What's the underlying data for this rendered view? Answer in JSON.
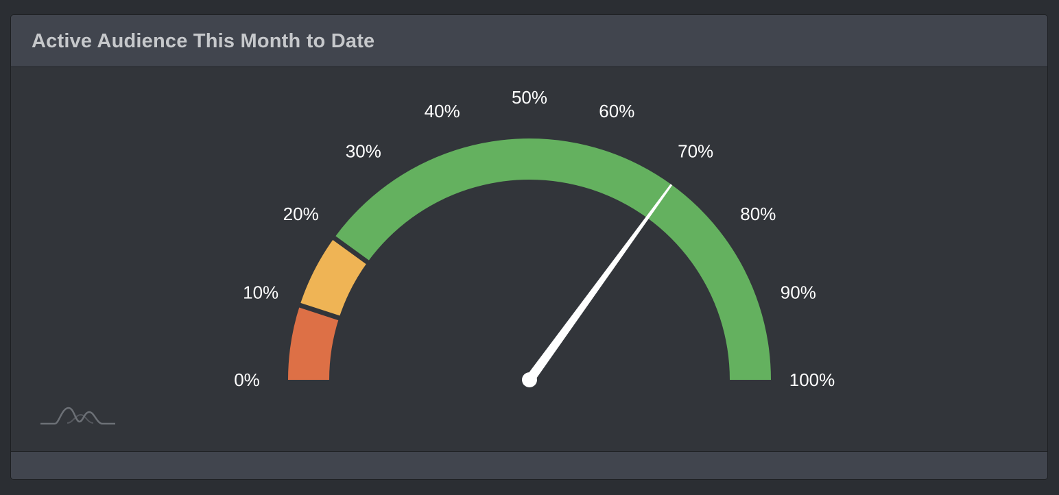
{
  "panel": {
    "title": "Active Audience This Month to Date"
  },
  "icons": {
    "brand": "wave-peaks-logo-icon"
  },
  "colors": {
    "background": "#2b2e33",
    "panel_body": "#32353a",
    "panel_header": "#41454e",
    "band_low": "#dd7046",
    "band_mid": "#efb455",
    "band_high": "#64b15f",
    "needle": "#ffffff"
  },
  "chart_data": {
    "type": "gauge",
    "title": "Active Audience This Month to Date",
    "min": 0,
    "max": 100,
    "value": 70,
    "unit": "%",
    "ticks": [
      "0%",
      "10%",
      "20%",
      "30%",
      "40%",
      "50%",
      "60%",
      "70%",
      "80%",
      "90%",
      "100%"
    ],
    "bands": [
      {
        "from": 0,
        "to": 10,
        "color": "#dd7046"
      },
      {
        "from": 10,
        "to": 20,
        "color": "#efb455"
      },
      {
        "from": 20,
        "to": 100,
        "color": "#64b15f"
      }
    ]
  }
}
